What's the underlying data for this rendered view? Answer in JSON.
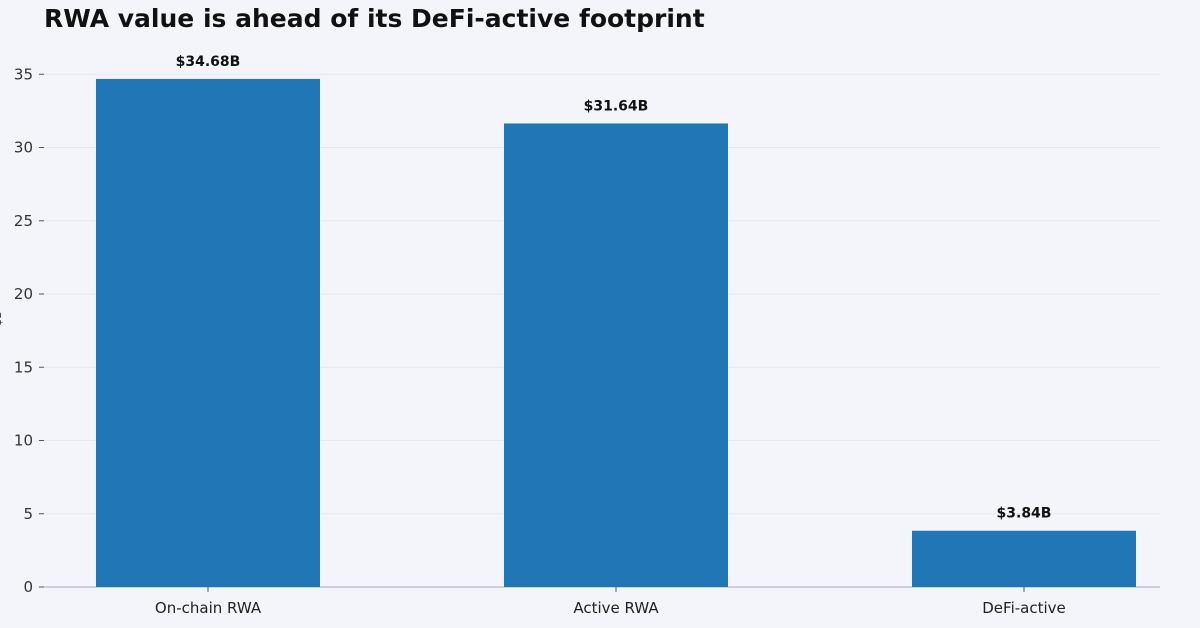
{
  "chart_data": {
    "type": "bar",
    "title": "RWA value is ahead of its DeFi-active footprint",
    "xlabel": "",
    "ylabel": "$B",
    "categories": [
      "On-chain RWA",
      "Active RWA",
      "DeFi-active"
    ],
    "values": [
      34.68,
      31.64,
      3.84
    ],
    "value_labels": [
      "$34.68B",
      "$31.64B",
      "$3.84B"
    ],
    "yticks": [
      0,
      5,
      10,
      15,
      20,
      25,
      30,
      35
    ],
    "ylim": [
      0,
      35.5
    ],
    "grid": "horizontal",
    "colors": {
      "bar": "#2176b5",
      "grid": "#e6e9f0",
      "axis": "#b8bcc6",
      "background": "#f3f5fa"
    }
  }
}
